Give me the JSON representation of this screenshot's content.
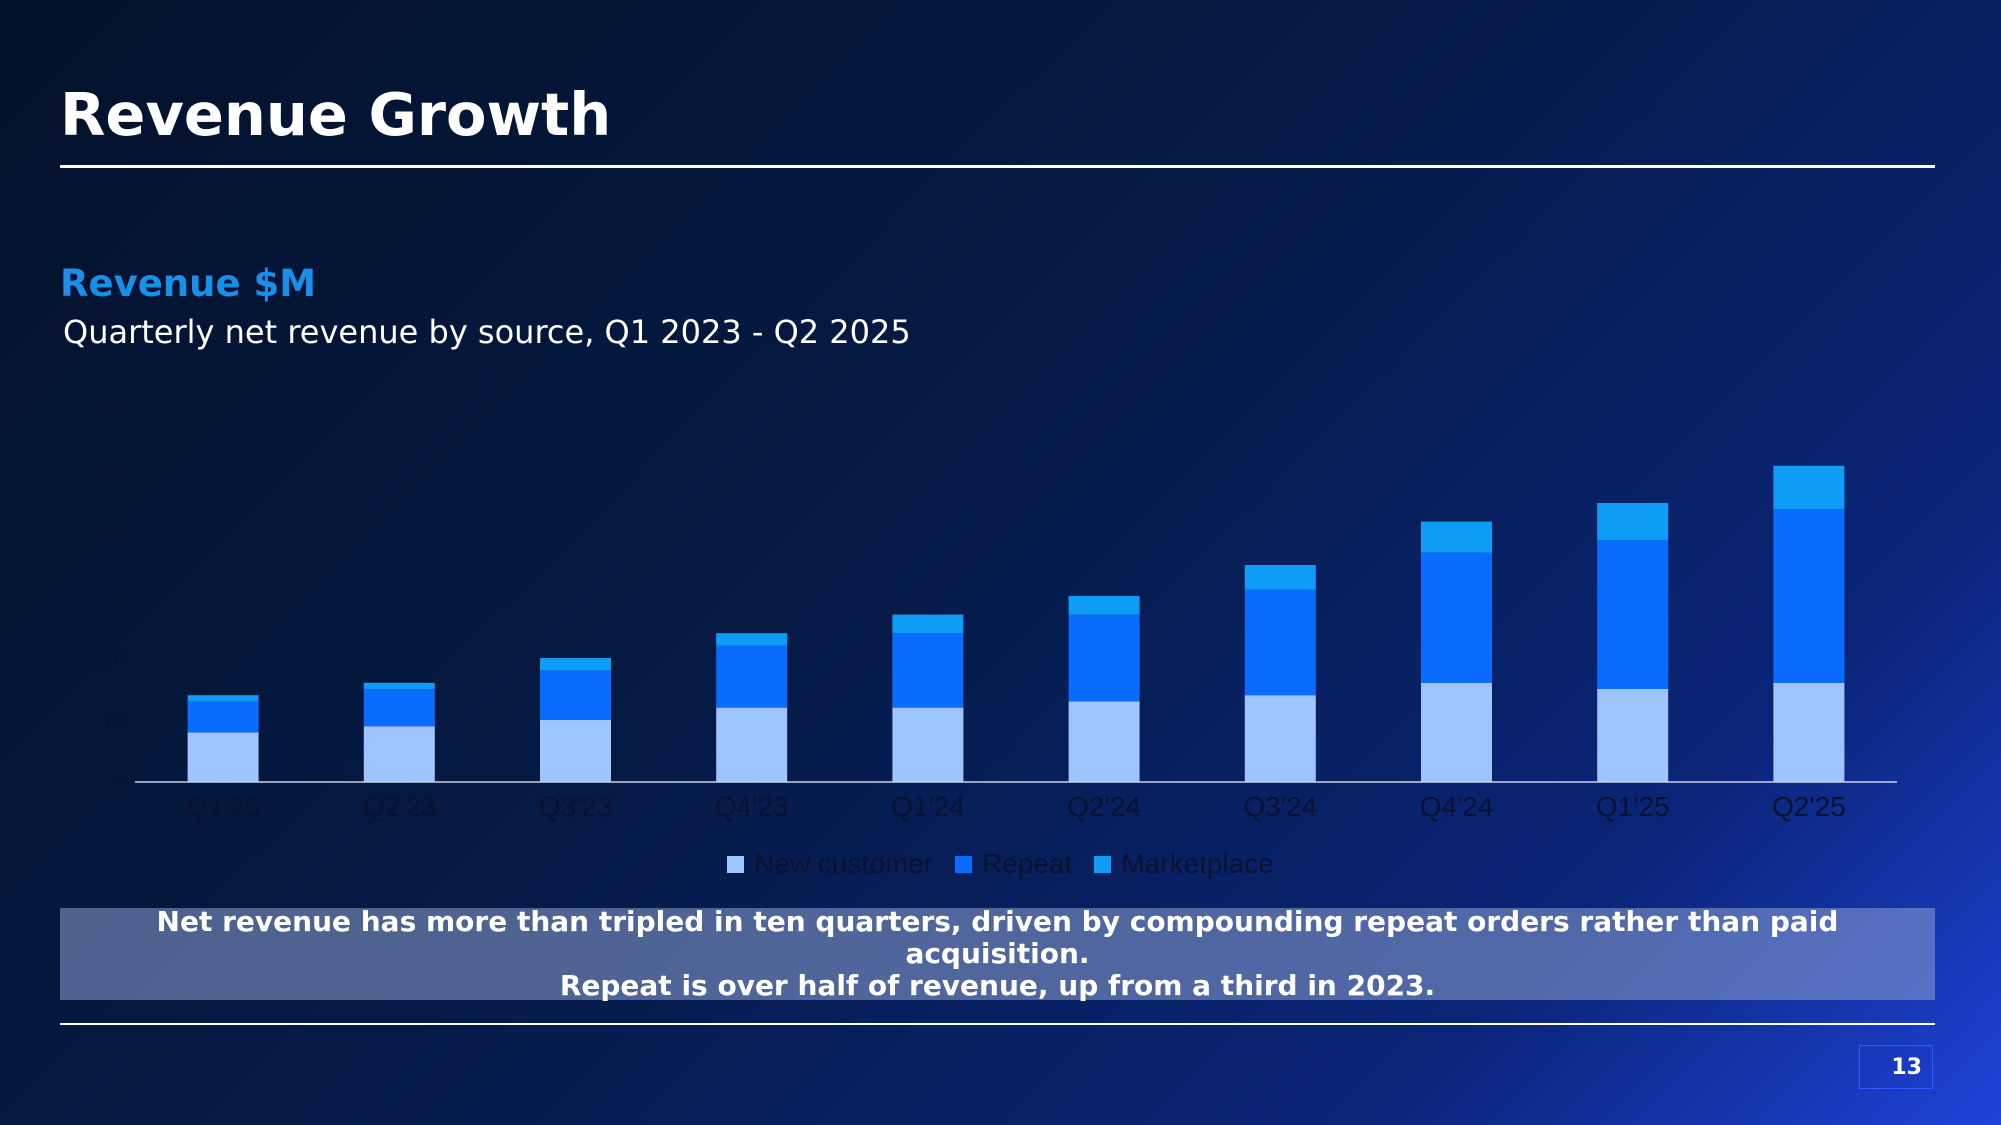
{
  "slide": {
    "title": "Revenue Growth",
    "callout_line1": "Net revenue has more than tripled in ten quarters, driven by compounding repeat orders rather than paid acquisition.",
    "callout_line2": "Repeat is over half of revenue, up from a third in 2023.",
    "page_number": "13"
  },
  "chart_data": {
    "type": "bar",
    "stacked": true,
    "title": "Revenue $M",
    "subtitle": "Quarterly net revenue by source, Q1 2023 - Q2 2025",
    "categories": [
      "Q1'23",
      "Q2'23",
      "Q3'23",
      "Q4'23",
      "Q1'24",
      "Q2'24",
      "Q3'24",
      "Q4'24",
      "Q1'25",
      "Q2'25"
    ],
    "series": [
      {
        "name": "New customer",
        "color": "#9ec5ff",
        "values": [
          8,
          9,
          10,
          12,
          12,
          13,
          14,
          16,
          15,
          16
        ]
      },
      {
        "name": "Repeat",
        "color": "#0a6cff",
        "values": [
          5,
          6,
          8,
          10,
          12,
          14,
          17,
          21,
          24,
          28
        ]
      },
      {
        "name": "Marketplace",
        "color": "#0e9cf5",
        "values": [
          1,
          1,
          2,
          2,
          3,
          3,
          4,
          5,
          6,
          7
        ]
      }
    ],
    "ylim": [
      0,
      60
    ],
    "yticks": [
      0,
      10,
      20,
      30,
      40,
      50,
      60
    ],
    "grid": false,
    "legend_position": "bottom"
  },
  "colors": {
    "accent": "#1a8fe8",
    "axis_text": "#0a1230"
  }
}
